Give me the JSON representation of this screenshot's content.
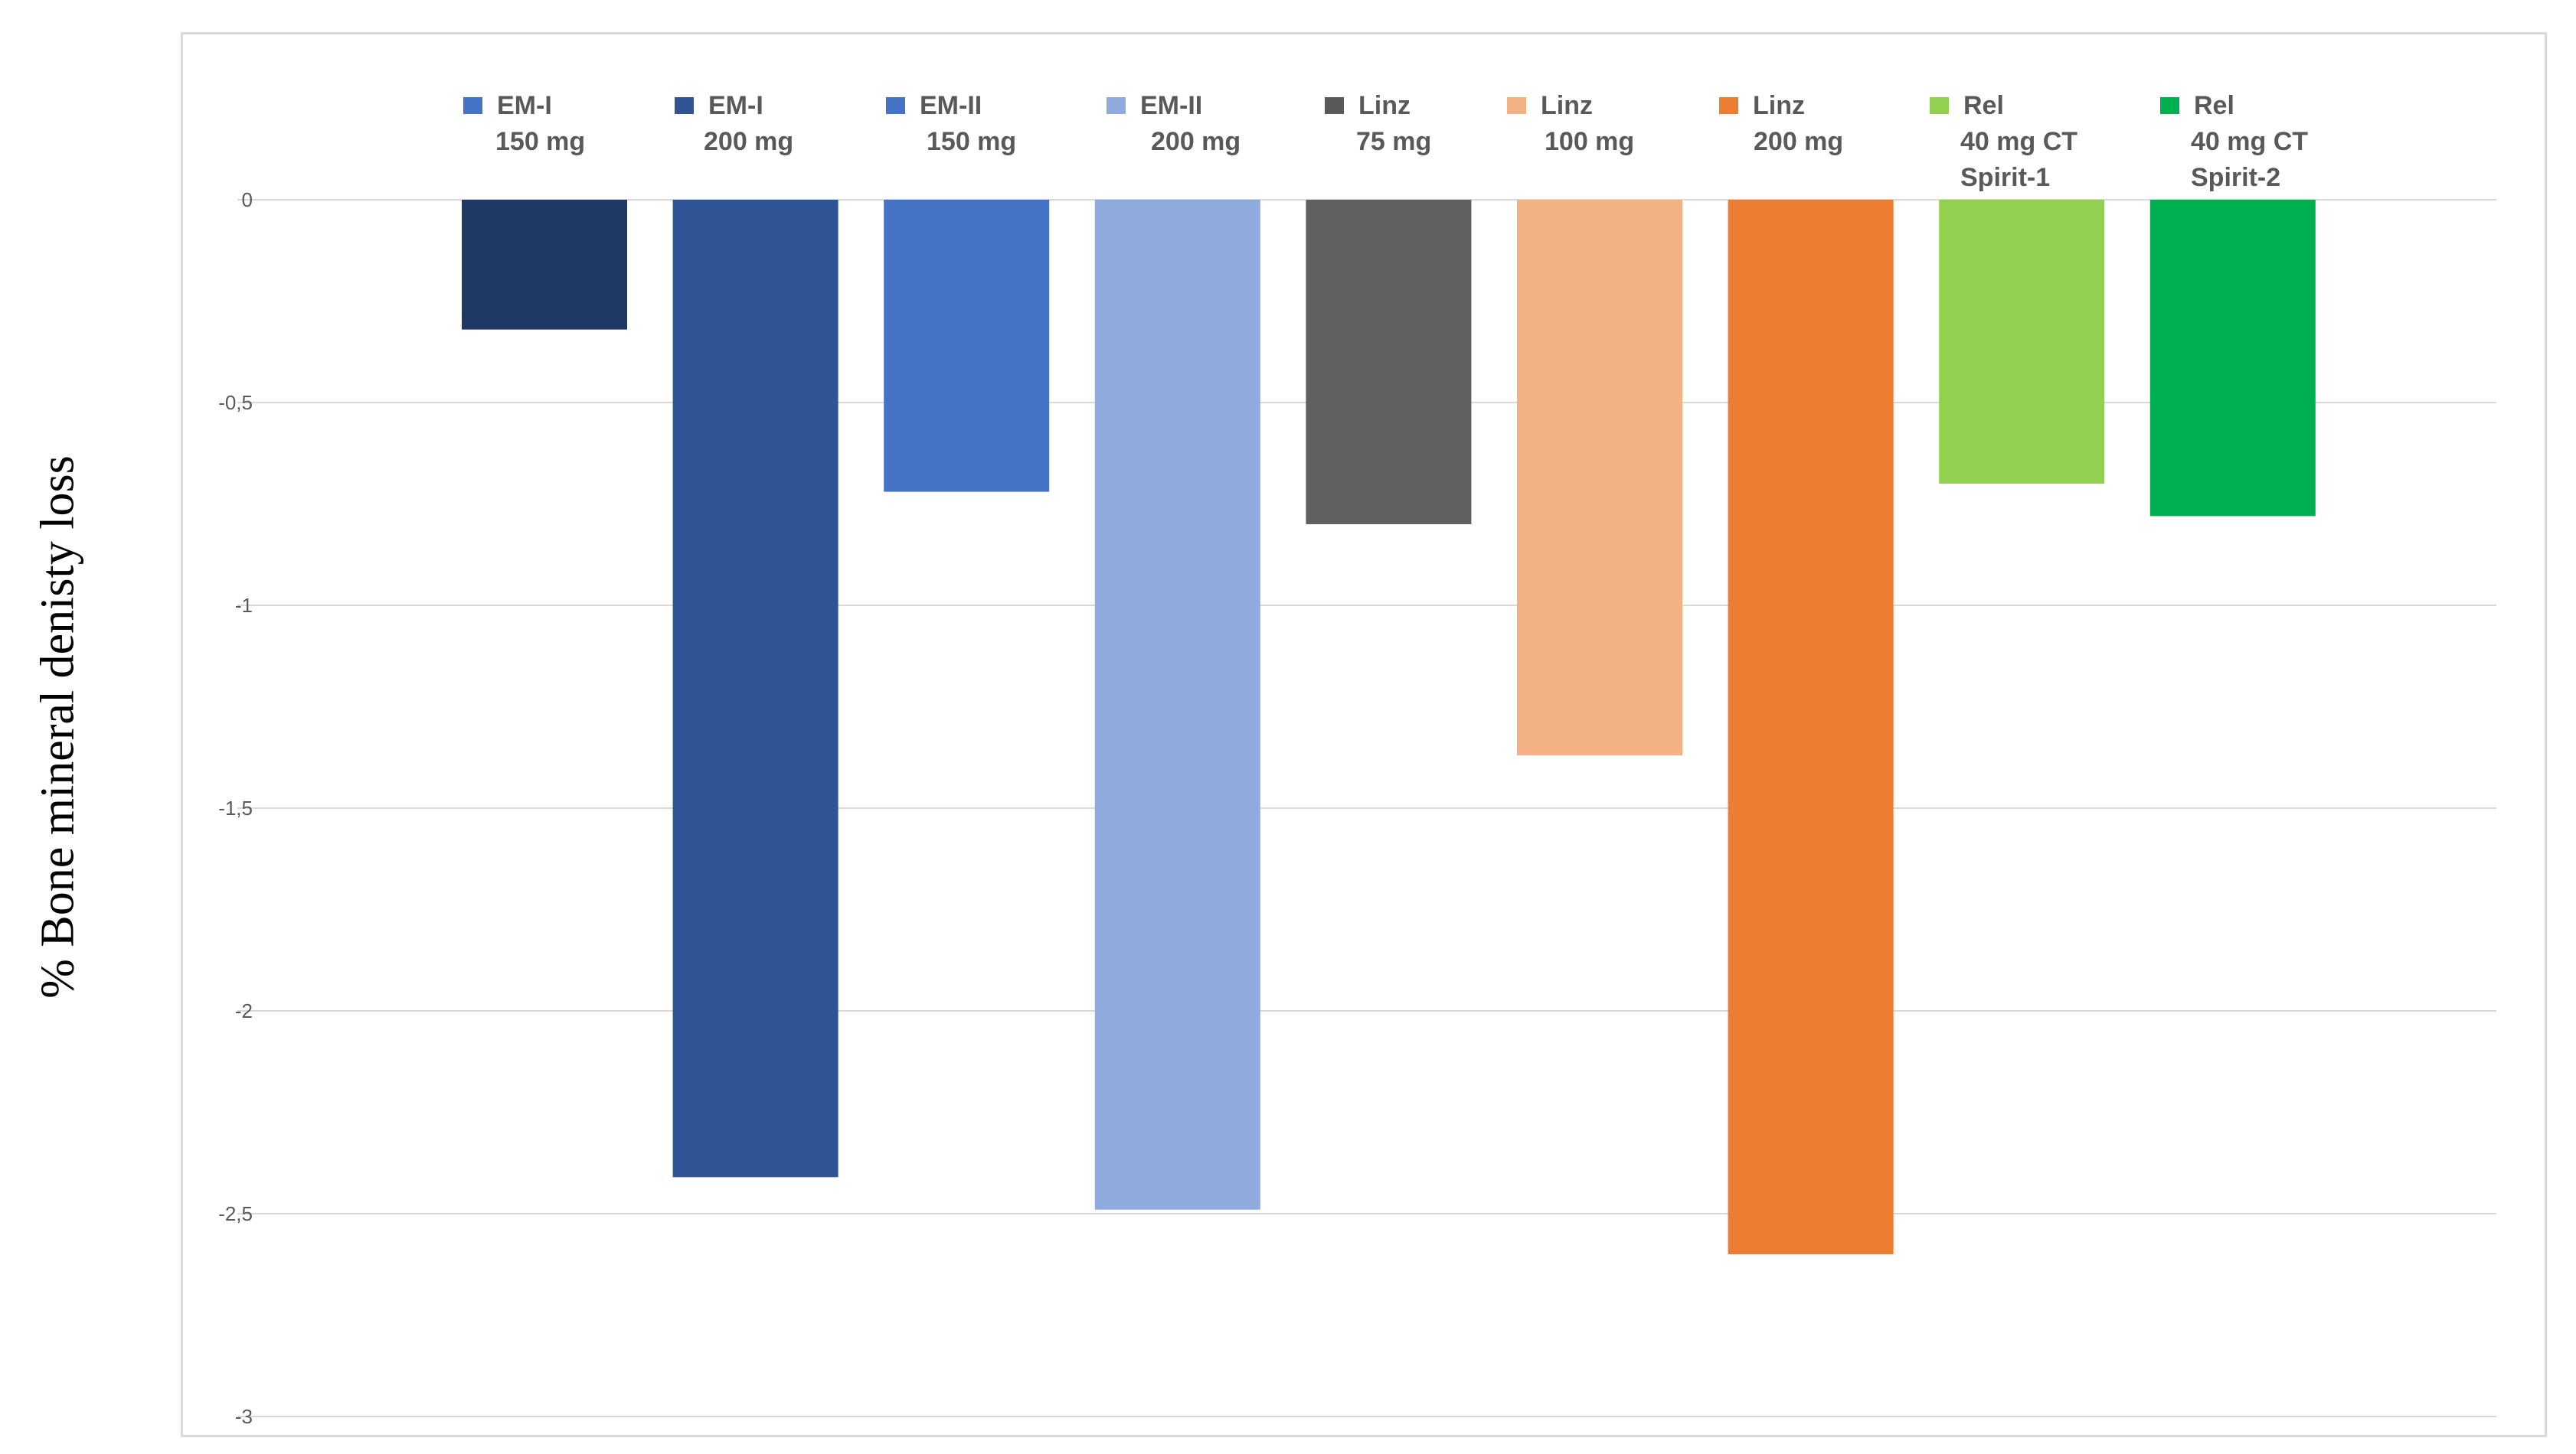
{
  "chart_data": {
    "type": "bar",
    "title": "",
    "xlabel": "",
    "ylabel": "% Bone mineral denisty loss",
    "ylim": [
      -3,
      0
    ],
    "yticks": [
      "0",
      "-0,5",
      "-1",
      "-1,5",
      "-2",
      "-2,5",
      "-3"
    ],
    "ytick_values": [
      0,
      -0.5,
      -1,
      -1.5,
      -2,
      -2.5,
      -3
    ],
    "grid": true,
    "legend_position": "top",
    "series": [
      {
        "name": [
          "EM-I",
          "150 mg"
        ],
        "value": -0.32,
        "color": "#1f3864",
        "legend_color": "#4472c4"
      },
      {
        "name": [
          "EM-I",
          "200 mg"
        ],
        "value": -2.41,
        "color": "#2f5597",
        "legend_color": "#2f5597"
      },
      {
        "name": [
          "EM-II",
          "150 mg"
        ],
        "value": -0.72,
        "color": "#4472c4",
        "legend_color": "#4472c4"
      },
      {
        "name": [
          "EM-II",
          "200 mg"
        ],
        "value": -2.49,
        "color": "#8faadc",
        "legend_color": "#8faadc"
      },
      {
        "name": [
          "Linz",
          "75 mg"
        ],
        "value": -0.8,
        "color": "#606060",
        "legend_color": "#595959"
      },
      {
        "name": [
          "Linz",
          "100 mg"
        ],
        "value": -1.37,
        "color": "#f4b183",
        "legend_color": "#f4b183"
      },
      {
        "name": [
          "Linz",
          "200 mg"
        ],
        "value": -2.6,
        "color": "#ed7d31",
        "legend_color": "#ed7d31"
      },
      {
        "name": [
          "Rel",
          "40 mg CT",
          "Spirit-1"
        ],
        "value": -0.7,
        "color": "#92d050",
        "legend_color": "#92d050"
      },
      {
        "name": [
          "Rel",
          "40 mg CT",
          "Spirit-2"
        ],
        "value": -0.78,
        "color": "#00b050",
        "legend_color": "#00b050"
      }
    ]
  }
}
